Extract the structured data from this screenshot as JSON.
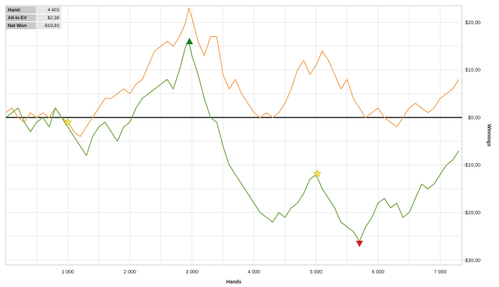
{
  "stats": [
    {
      "label": "Hand:",
      "value": "4 403"
    },
    {
      "label": "All-in EV",
      "value": "$2,38"
    },
    {
      "label": "Net Won",
      "value": "-$19,93"
    }
  ],
  "chart_data": {
    "type": "line",
    "title": "",
    "xlabel": "Hands",
    "ylabel": "Winnings",
    "xlim": [
      0,
      7350
    ],
    "ylim": [
      -31,
      23.5
    ],
    "x_ticks": [
      1000,
      2000,
      3000,
      4000,
      5000,
      6000,
      7000
    ],
    "x_tick_labels": [
      "1 000",
      "2 000",
      "3 000",
      "4 000",
      "5 000",
      "6 000",
      "7 000"
    ],
    "y_ticks": [
      20,
      10,
      0,
      -10,
      -20,
      -30
    ],
    "y_tick_labels": [
      "$20,00",
      "$10,00",
      "$0,00",
      "-$10,00",
      "-$20,00",
      "-$30,00"
    ],
    "grid": true,
    "y_axis_side": "right",
    "zero_line": true,
    "series": [
      {
        "color": "#f0a050",
        "x": [
          0,
          100,
          200,
          300,
          400,
          500,
          600,
          700,
          800,
          900,
          1000,
          1100,
          1200,
          1300,
          1400,
          1500,
          1600,
          1700,
          1800,
          1900,
          2000,
          2100,
          2200,
          2300,
          2400,
          2500,
          2600,
          2700,
          2800,
          2900,
          2950,
          3000,
          3100,
          3200,
          3300,
          3400,
          3500,
          3600,
          3700,
          3800,
          3900,
          4000,
          4100,
          4200,
          4300,
          4400,
          4500,
          4600,
          4700,
          4800,
          4900,
          5000,
          5100,
          5200,
          5300,
          5400,
          5500,
          5600,
          5700,
          5800,
          5900,
          6000,
          6100,
          6200,
          6300,
          6400,
          6500,
          6600,
          6700,
          6800,
          6900,
          7000,
          7100,
          7200,
          7300
        ],
        "values": [
          1,
          2,
          0,
          -1,
          1,
          0,
          1,
          0,
          2,
          0,
          -1,
          -3,
          -4,
          -2,
          0,
          2,
          4,
          4,
          5,
          6,
          5,
          7,
          8,
          11,
          14,
          15,
          16,
          15,
          17,
          20,
          23,
          21,
          16,
          13,
          17,
          17,
          9,
          6,
          8,
          5,
          3,
          1,
          0,
          1,
          0,
          1,
          3,
          6,
          10,
          12,
          9,
          11,
          14,
          12,
          9,
          6,
          8,
          4,
          2,
          0,
          1,
          2,
          0,
          -1,
          -2,
          0,
          2,
          3,
          2,
          1,
          2,
          4,
          5,
          6,
          8
        ]
      },
      {
        "color": "#6aa33c",
        "x": [
          0,
          100,
          200,
          300,
          400,
          500,
          600,
          700,
          800,
          900,
          1000,
          1100,
          1200,
          1300,
          1400,
          1500,
          1600,
          1700,
          1800,
          1900,
          2000,
          2100,
          2200,
          2300,
          2400,
          2500,
          2600,
          2700,
          2800,
          2900,
          2950,
          3000,
          3100,
          3200,
          3300,
          3400,
          3500,
          3600,
          3700,
          3800,
          3900,
          4000,
          4100,
          4200,
          4300,
          4400,
          4500,
          4600,
          4700,
          4800,
          4900,
          5000,
          5100,
          5200,
          5300,
          5400,
          5500,
          5600,
          5700,
          5800,
          5900,
          6000,
          6100,
          6200,
          6300,
          6400,
          6500,
          6600,
          6700,
          6800,
          6900,
          7000,
          7100,
          7200,
          7300
        ],
        "values": [
          0,
          1,
          2,
          -1,
          -3,
          -1,
          0,
          -2,
          2,
          0,
          -2,
          -4,
          -6,
          -8,
          -4,
          -2,
          -1,
          -3,
          -5,
          -2,
          -1,
          2,
          4,
          5,
          6,
          7,
          8,
          6,
          10,
          15,
          16,
          13,
          9,
          4,
          0,
          -1,
          -6,
          -10,
          -12,
          -14,
          -16,
          -18,
          -20,
          -21,
          -22,
          -20,
          -21,
          -19,
          -18,
          -16,
          -13,
          -12,
          -15,
          -17,
          -19,
          -22,
          -23,
          -24,
          -26,
          -23,
          -21,
          -18,
          -17,
          -19,
          -18,
          -21,
          -20,
          -17,
          -14,
          -15,
          -14,
          -12,
          -10,
          -9,
          -7
        ]
      }
    ],
    "markers": [
      {
        "shape": "triangle-up",
        "color": "#1a7a1a",
        "x": 2960,
        "y": 16
      },
      {
        "shape": "triangle-down",
        "color": "#cc2222",
        "x": 5700,
        "y": -26.5
      },
      {
        "shape": "star",
        "color": "#f5e34a",
        "x": 1000,
        "y": -1
      },
      {
        "shape": "star",
        "color": "#f5e34a",
        "x": 5020,
        "y": -11.8
      }
    ]
  }
}
